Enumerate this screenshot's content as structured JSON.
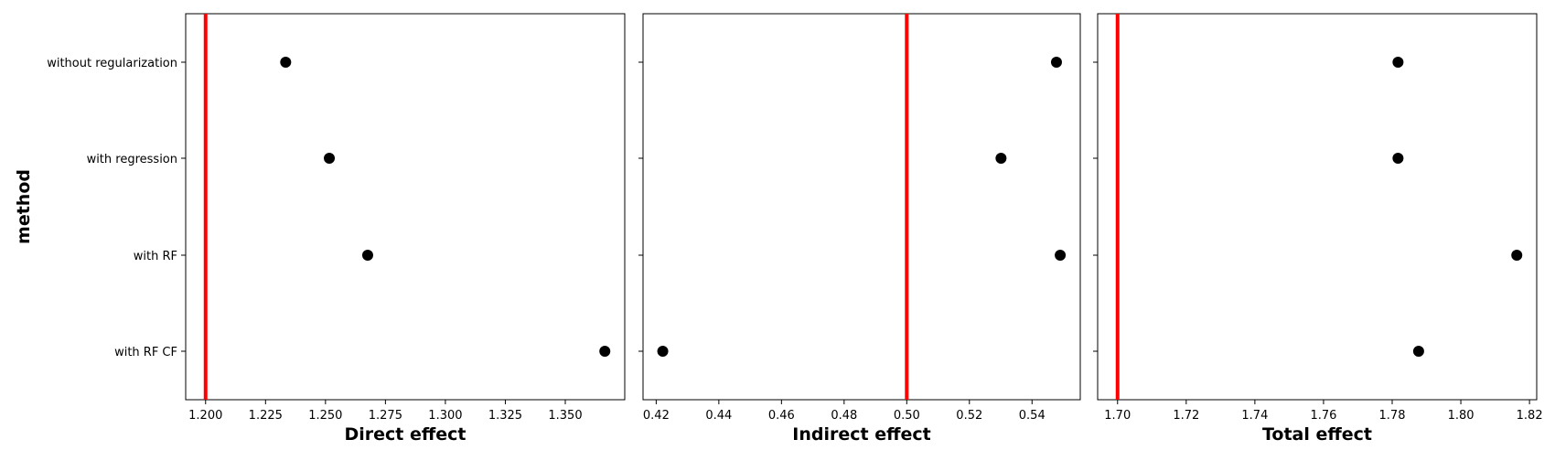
{
  "colors": {
    "reference_line": "#ff0000",
    "points": "#000000",
    "frame": "#000000",
    "background": "#ffffff"
  },
  "ylabel": "method",
  "categories": [
    "without regularization",
    "with regression",
    "with RF",
    "with RF CF"
  ],
  "chart_data": [
    {
      "type": "scatter",
      "title": "",
      "xlabel": "Direct effect",
      "ylabel": "method",
      "categories": [
        "without regularization",
        "with regression",
        "with RF",
        "with RF CF"
      ],
      "values": [
        1.2334,
        1.2516,
        1.2676,
        1.3665
      ],
      "reference_x": 1.2,
      "xlim": [
        1.1917,
        1.3748
      ],
      "xticks": [
        1.2,
        1.225,
        1.25,
        1.275,
        1.3,
        1.325,
        1.35
      ],
      "xtick_labels": [
        "1.200",
        "1.225",
        "1.250",
        "1.275",
        "1.300",
        "1.325",
        "1.350"
      ],
      "grid": false,
      "legend": "none"
    },
    {
      "type": "scatter",
      "title": "",
      "xlabel": "Indirect effect",
      "ylabel": "",
      "categories": [
        "without regularization",
        "with regression",
        "with RF",
        "with RF CF"
      ],
      "values": [
        0.5478,
        0.5301,
        0.549,
        0.4221
      ],
      "reference_x": 0.5,
      "xlim": [
        0.4158,
        0.5554
      ],
      "xticks": [
        0.42,
        0.44,
        0.46,
        0.48,
        0.5,
        0.52,
        0.54
      ],
      "xtick_labels": [
        "0.42",
        "0.44",
        "0.46",
        "0.48",
        "0.50",
        "0.52",
        "0.54"
      ],
      "grid": false,
      "legend": "none"
    },
    {
      "type": "scatter",
      "title": "",
      "xlabel": "Total effect",
      "ylabel": "",
      "categories": [
        "without regularization",
        "with regression",
        "with RF",
        "with RF CF"
      ],
      "values": [
        1.7817,
        1.7817,
        1.8163,
        1.7877
      ],
      "reference_x": 1.7,
      "xlim": [
        1.6942,
        1.8221
      ],
      "xticks": [
        1.7,
        1.72,
        1.74,
        1.76,
        1.78,
        1.8,
        1.82
      ],
      "xtick_labels": [
        "1.70",
        "1.72",
        "1.74",
        "1.76",
        "1.78",
        "1.80",
        "1.82"
      ],
      "grid": false,
      "legend": "none"
    }
  ]
}
